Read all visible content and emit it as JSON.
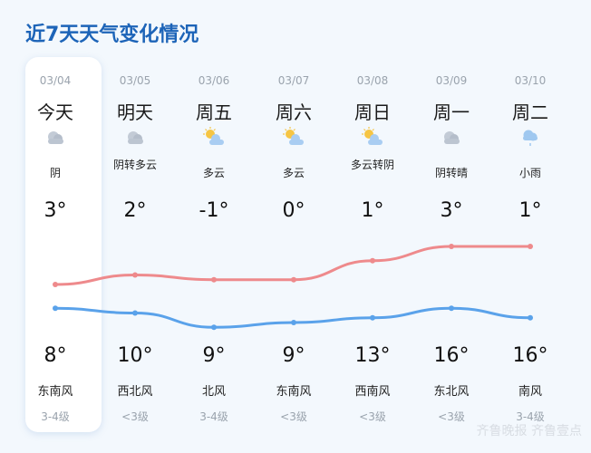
{
  "title": "近7天天气变化情况",
  "days": [
    {
      "date": "03/04",
      "name": "今天",
      "icon": "overcast-cloud",
      "condition": "阴",
      "low": "3°",
      "high": "8°",
      "wind": "东南风",
      "level": "3-4级"
    },
    {
      "date": "03/05",
      "name": "明天",
      "icon": "overcast-cloud",
      "condition": "阴转多云",
      "low": "2°",
      "high": "10°",
      "wind": "西北风",
      "level": "<3级"
    },
    {
      "date": "03/06",
      "name": "周五",
      "icon": "partly-cloudy",
      "condition": "多云",
      "low": "-1°",
      "high": "9°",
      "wind": "北风",
      "level": "3-4级"
    },
    {
      "date": "03/07",
      "name": "周六",
      "icon": "partly-cloudy",
      "condition": "多云",
      "low": "0°",
      "high": "9°",
      "wind": "东南风",
      "level": "<3级"
    },
    {
      "date": "03/08",
      "name": "周日",
      "icon": "partly-cloudy",
      "condition": "多云转阴",
      "low": "1°",
      "high": "13°",
      "wind": "西南风",
      "level": "<3级"
    },
    {
      "date": "03/09",
      "name": "周一",
      "icon": "overcast-cloud",
      "condition": "阴转晴",
      "low": "3°",
      "high": "16°",
      "wind": "东北风",
      "level": "<3级"
    },
    {
      "date": "03/10",
      "name": "周二",
      "icon": "light-rain",
      "condition": "小雨",
      "low": "1°",
      "high": "16°",
      "wind": "南风",
      "level": "3-4级"
    }
  ],
  "chart_data": {
    "type": "line",
    "categories": [
      "03/04",
      "03/05",
      "03/06",
      "03/07",
      "03/08",
      "03/09",
      "03/10"
    ],
    "series": [
      {
        "values": [
          8,
          10,
          9,
          9,
          13,
          16,
          16
        ],
        "color": "#ee8a8c"
      },
      {
        "values": [
          3,
          2,
          -1,
          0,
          1,
          3,
          1
        ],
        "color": "#5aa2ea"
      }
    ]
  },
  "watermark": "齐鲁晚报 齐鲁壹点"
}
